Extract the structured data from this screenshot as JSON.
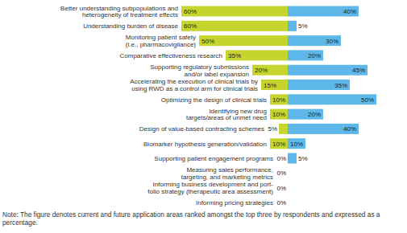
{
  "chart_data": {
    "type": "bar",
    "orientation": "horizontal",
    "categories": [
      "Better understanding subpopulations and\nheterogeneity of treatment effects",
      "Understanding burden of disease",
      "Monitoring patient safety\n(i.e., pharmacovigilance)",
      "Comparative effectiveness research",
      "Supporting regulatory submissions\nand/or label expansion",
      "Accelerating the execution of clinical trials by\nusing RWD as a control arm for clinical trials",
      "Optimizing the design of clinical trials",
      "Identifying new drug\ntargets/areas of unmet need",
      "Design of value-based contracting schemes",
      "Biomarker hypothesis generation/validation",
      "Supporting patient engagement programs",
      "Measuring sales performance,\ntargeting, and marketing metrics",
      "Informing business development and port-\nfolio strategy (therapeutic area assessment)",
      "Informing pricing strategies"
    ],
    "series": [
      {
        "color": "#c6d52d",
        "values": [
          60,
          60,
          50,
          35,
          20,
          15,
          10,
          10,
          5,
          10,
          0,
          0,
          0,
          0
        ],
        "value_labels": [
          "60%",
          "60%",
          "50%",
          "35%",
          "20%",
          "15%",
          "10%",
          "10%",
          "5%",
          "10%",
          "0%",
          "0%",
          "0%",
          "0%"
        ]
      },
      {
        "color": "#5db7e9",
        "values": [
          40,
          5,
          30,
          20,
          45,
          35,
          50,
          20,
          40,
          10,
          5,
          0,
          0,
          0
        ],
        "value_labels": [
          "40%",
          "5%",
          "30%",
          "20%",
          "45%",
          "35%",
          "50%",
          "20%",
          "40%",
          "10%",
          "5%",
          null,
          null,
          null
        ]
      }
    ],
    "xlim": [
      0,
      60
    ],
    "data_labels": true,
    "tick_labels": "y",
    "annotations": [
      "Note: The figure denotes current and future application areas ranked amongst the top three by respondents and expressed as a percentage."
    ]
  }
}
